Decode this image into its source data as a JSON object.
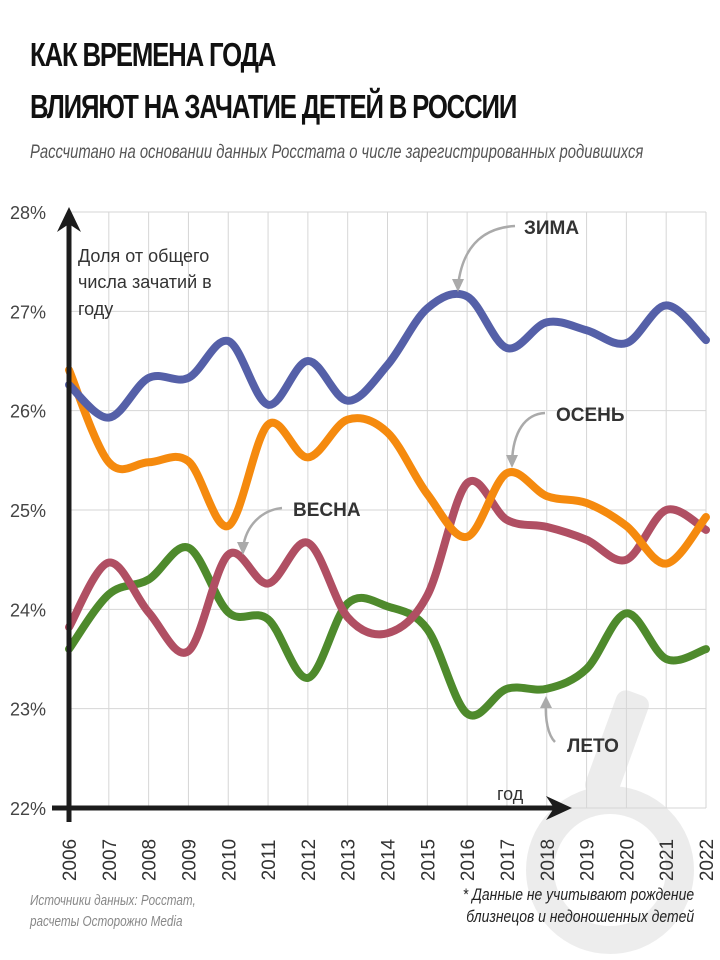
{
  "header": {
    "title_line1": "КАК ВРЕМЕНА ГОДА",
    "title_line2": "ВЛИЯЮТ НА ЗАЧАТИЕ ДЕТЕЙ В РОССИИ",
    "subtitle": "Рассчитано на основании данных Росстата о числе зарегистрированных родившихся"
  },
  "footer": {
    "sources_line1": "Источники данных: Росстат,",
    "sources_line2": "расчеты Осторожно Media",
    "note_line1": "* Данные не учитывают рождение",
    "note_line2": "близнецов и недоношенных детей"
  },
  "chart_data": {
    "type": "line",
    "title": "КАК ВРЕМЕНА ГОДА ВЛИЯЮТ НА ЗАЧАТИЕ ДЕТЕЙ В РОССИИ",
    "ylabel_lines": [
      "Доля от общего",
      "числа зачатий в",
      "году"
    ],
    "xlabel": "год",
    "ylim": [
      22,
      28
    ],
    "yticks": [
      "22%",
      "23%",
      "24%",
      "25%",
      "26%",
      "27%",
      "28%"
    ],
    "grid": true,
    "x": [
      2006,
      2007,
      2008,
      2009,
      2010,
      2011,
      2012,
      2013,
      2014,
      2015,
      2016,
      2017,
      2018,
      2019,
      2020,
      2021,
      2022
    ],
    "xticks": [
      "2006",
      "2007",
      "2008",
      "2009",
      "2010",
      "2011",
      "2012",
      "2013",
      "2014",
      "2015",
      "2016",
      "2017",
      "2018",
      "2019",
      "2020",
      "2021",
      "2022"
    ],
    "series": [
      {
        "name": "ЗИМА",
        "color": "#5560a8",
        "values": [
          26.26,
          25.93,
          26.33,
          26.33,
          26.7,
          26.06,
          26.5,
          26.1,
          26.46,
          27.03,
          27.15,
          26.63,
          26.89,
          26.81,
          26.68,
          27.06,
          26.71
        ]
      },
      {
        "name": "ОСЕНЬ",
        "color": "#f58a0e",
        "values": [
          26.41,
          25.48,
          25.48,
          25.49,
          24.84,
          25.86,
          25.53,
          25.91,
          25.78,
          25.16,
          24.73,
          25.37,
          25.14,
          25.07,
          24.84,
          24.46,
          24.93
        ]
      },
      {
        "name": "ВЕСНА",
        "color": "#b04f63",
        "values": [
          23.82,
          24.47,
          23.97,
          23.58,
          24.55,
          24.26,
          24.67,
          23.92,
          23.76,
          24.14,
          25.27,
          24.9,
          24.83,
          24.7,
          24.5,
          25.0,
          24.8
        ]
      },
      {
        "name": "ЛЕТО",
        "color": "#4e8a2c",
        "values": [
          23.6,
          24.15,
          24.3,
          24.62,
          23.97,
          23.9,
          23.31,
          24.06,
          24.03,
          23.8,
          22.95,
          23.2,
          23.2,
          23.4,
          23.96,
          23.5,
          23.6
        ]
      }
    ],
    "annotations": [
      {
        "text": "ЗИМА",
        "points_to_year": 2016
      },
      {
        "text": "ОСЕНЬ",
        "points_to_year": 2017
      },
      {
        "text": "ВЕСНА",
        "points_to_year": 2010.3
      },
      {
        "text": "ЛЕТО",
        "points_to_year": 2018
      }
    ],
    "legend": "inline-annotations"
  }
}
